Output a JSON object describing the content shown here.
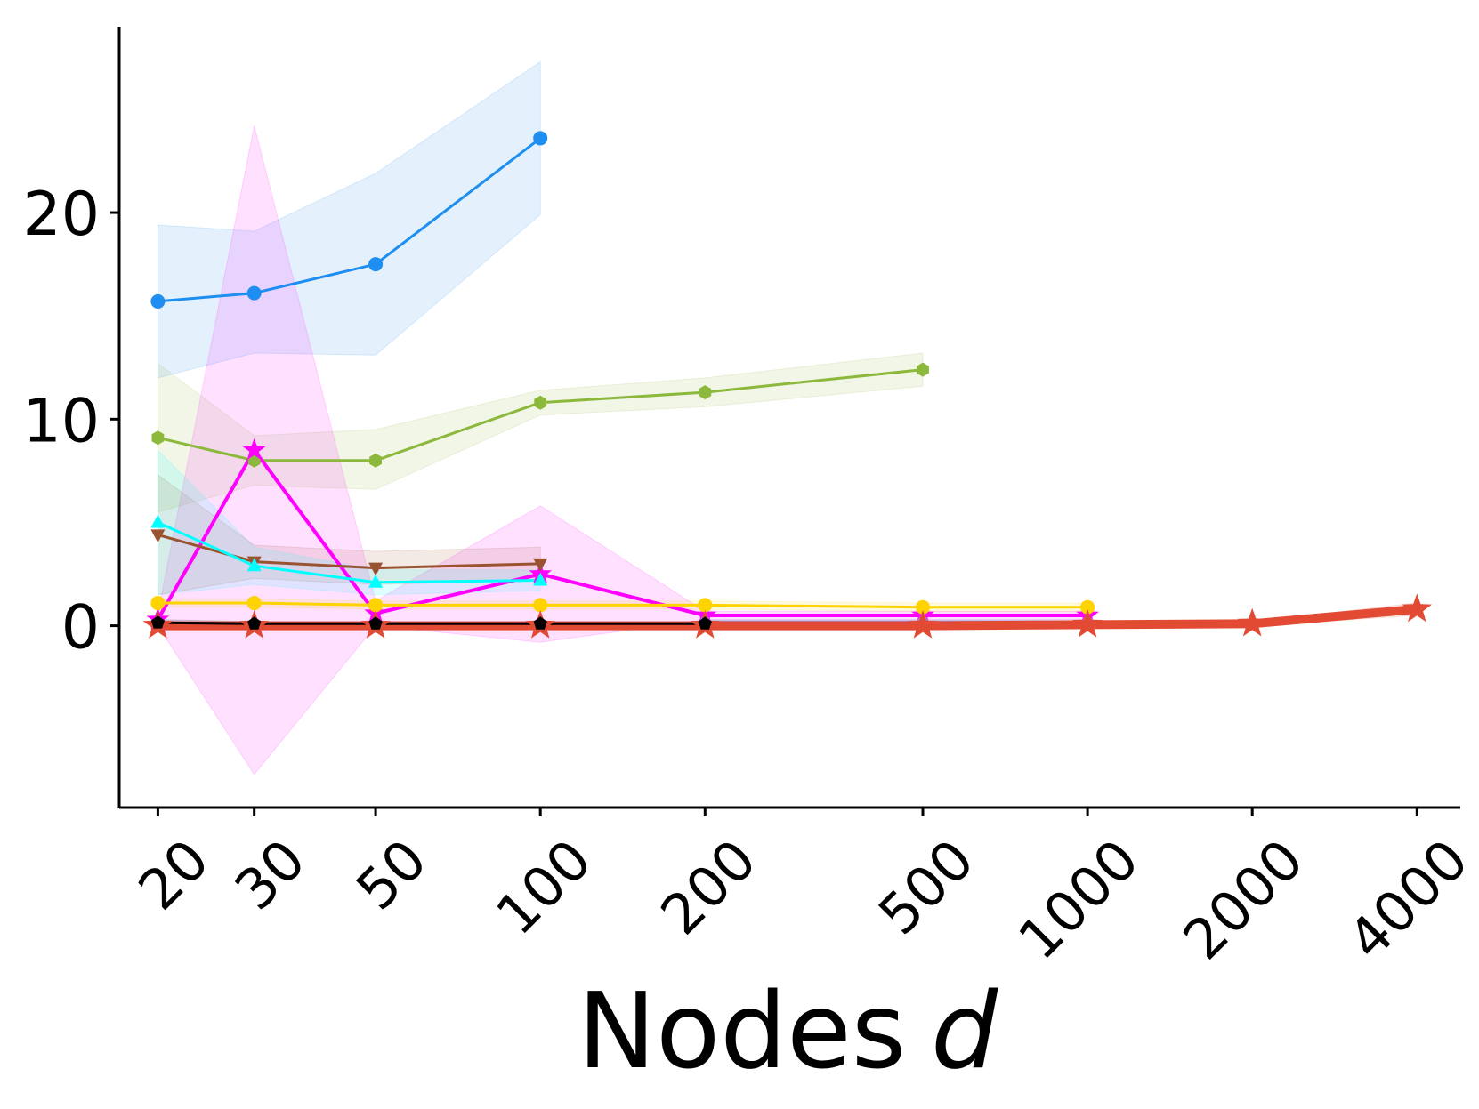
{
  "chart_data": {
    "type": "line",
    "title": "",
    "xlabel": "Nodes",
    "xlabel_var": "d",
    "ylabel": "",
    "x_scale": "log",
    "xticks": [
      20,
      30,
      50,
      100,
      200,
      500,
      1000,
      2000,
      4000
    ],
    "xtick_labels": [
      "20",
      "30",
      "50",
      "100",
      "200",
      "500",
      "1000",
      "2000",
      "4000"
    ],
    "yticks": [
      0,
      10,
      20
    ],
    "ytick_labels": [
      "0",
      "10",
      "20"
    ],
    "xlim": [
      17,
      4800
    ],
    "ylim": [
      -8.8,
      29
    ],
    "grid": false,
    "legend": "none",
    "series": [
      {
        "color": "#1e8ef0",
        "marker": "circle",
        "width": 3,
        "x": [
          20,
          30,
          50,
          100
        ],
        "y": [
          15.7,
          16.1,
          17.5,
          23.6
        ],
        "lower": [
          12.0,
          13.2,
          13.1,
          19.9
        ],
        "upper": [
          19.4,
          19.1,
          21.9,
          27.3
        ]
      },
      {
        "color": "#8cb83c",
        "marker": "hexagon",
        "width": 3,
        "x": [
          20,
          30,
          50,
          100,
          200,
          500
        ],
        "y": [
          9.1,
          8.0,
          8.0,
          10.8,
          11.3,
          12.4
        ],
        "lower": [
          5.5,
          6.8,
          6.6,
          10.2,
          10.6,
          11.6
        ],
        "upper": [
          12.7,
          9.2,
          9.5,
          11.4,
          12.0,
          13.2
        ]
      },
      {
        "color": "#ff00ff",
        "marker": "star",
        "width": 4,
        "x": [
          20,
          30,
          50,
          100,
          200,
          500,
          1000
        ],
        "y": [
          0.3,
          8.5,
          0.6,
          2.5,
          0.5,
          0.5,
          0.5
        ],
        "lower": [
          0.0,
          -7.2,
          0.0,
          -0.8,
          0.3,
          0.3,
          0.3
        ],
        "upper": [
          0.6,
          24.2,
          1.2,
          5.8,
          0.7,
          0.7,
          0.7
        ]
      },
      {
        "color": "#9a5331",
        "marker": "triangle-down",
        "width": 3,
        "x": [
          20,
          30,
          50,
          100
        ],
        "y": [
          4.4,
          3.1,
          2.8,
          3.0
        ],
        "lower": [
          1.5,
          2.3,
          2.0,
          2.2
        ],
        "upper": [
          7.3,
          3.9,
          3.6,
          3.8
        ]
      },
      {
        "color": "#00ffff",
        "marker": "triangle-up",
        "width": 3,
        "x": [
          20,
          30,
          50,
          100
        ],
        "y": [
          5.0,
          2.9,
          2.1,
          2.2
        ],
        "lower": [
          1.5,
          2.0,
          1.5,
          1.7
        ],
        "upper": [
          8.5,
          3.8,
          2.7,
          2.7
        ]
      },
      {
        "color": "#ffd300",
        "marker": "circle",
        "width": 3,
        "x": [
          20,
          30,
          50,
          100,
          200,
          500,
          1000
        ],
        "y": [
          1.1,
          1.1,
          1.0,
          1.0,
          1.0,
          0.9,
          0.9
        ],
        "lower": [
          0.9,
          0.9,
          0.8,
          0.8,
          0.8,
          0.7,
          0.7
        ],
        "upper": [
          1.3,
          1.3,
          1.2,
          1.2,
          1.2,
          1.1,
          1.1
        ]
      },
      {
        "color": "#9b8fd8",
        "marker": "diamond",
        "width": 3,
        "x": [
          200,
          500,
          1000
        ],
        "y": [
          0.2,
          0.2,
          0.2
        ],
        "lower": [
          0.1,
          0.1,
          0.1
        ],
        "upper": [
          0.3,
          0.3,
          0.3
        ]
      },
      {
        "color": "#e34a33",
        "marker": "star",
        "width": 10,
        "x": [
          20,
          30,
          50,
          100,
          200,
          500,
          1000,
          2000,
          4000
        ],
        "y": [
          0.0,
          0.0,
          0.0,
          0.0,
          0.0,
          0.0,
          0.05,
          0.1,
          0.8
        ],
        "lower": [
          -0.1,
          -0.1,
          -0.1,
          -0.1,
          -0.1,
          -0.1,
          -0.05,
          0.0,
          0.5
        ],
        "upper": [
          0.1,
          0.1,
          0.1,
          0.1,
          0.1,
          0.1,
          0.15,
          0.2,
          1.1
        ]
      },
      {
        "color": "#000000",
        "marker": "pentagon",
        "width": 3,
        "x": [
          20,
          30,
          50,
          100,
          200
        ],
        "y": [
          0.15,
          0.1,
          0.1,
          0.1,
          0.1
        ],
        "lower": [
          0.0,
          0.0,
          0.0,
          0.0,
          0.0
        ],
        "upper": [
          0.3,
          0.2,
          0.2,
          0.2,
          0.2
        ]
      }
    ]
  }
}
